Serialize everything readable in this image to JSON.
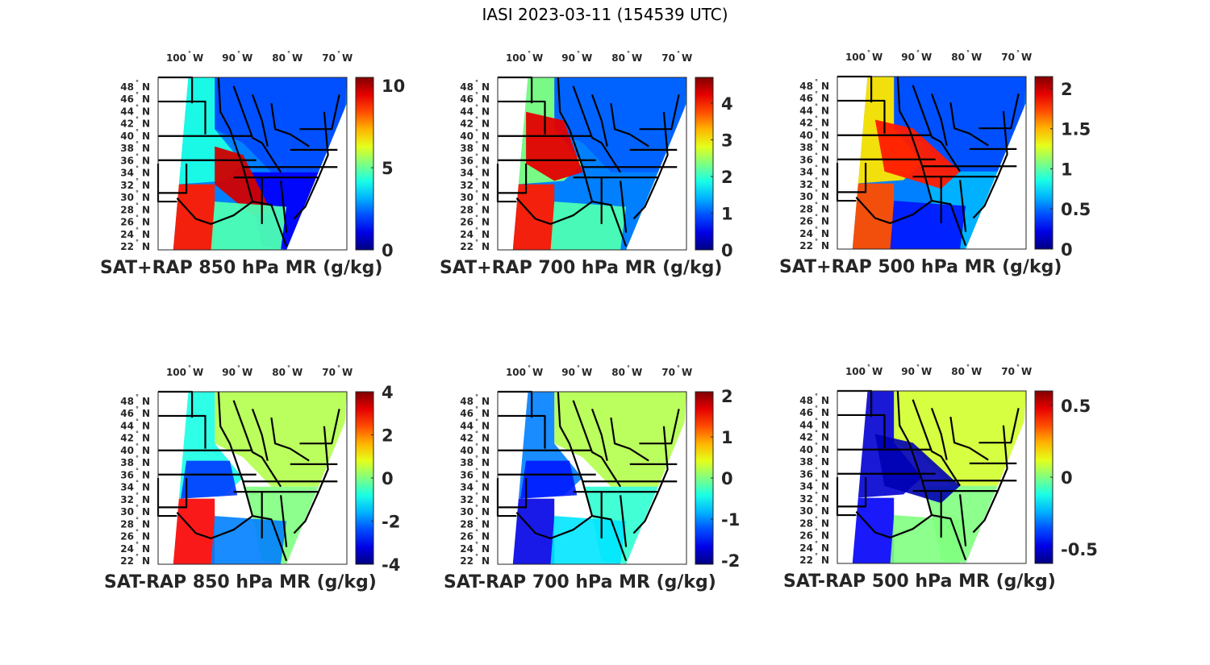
{
  "figure": {
    "title": "IASI 2023-03-11 (154539 UTC)"
  },
  "axes_common": {
    "lon_ticks": [
      {
        "value": "100",
        "hemi": "W"
      },
      {
        "value": "90",
        "hemi": "W"
      },
      {
        "value": "80",
        "hemi": "W"
      },
      {
        "value": "70",
        "hemi": "W"
      }
    ],
    "lat_ticks": [
      {
        "value": "48",
        "hemi": "N"
      },
      {
        "value": "46",
        "hemi": "N"
      },
      {
        "value": "44",
        "hemi": "N"
      },
      {
        "value": "42",
        "hemi": "N"
      },
      {
        "value": "40",
        "hemi": "N"
      },
      {
        "value": "38",
        "hemi": "N"
      },
      {
        "value": "36",
        "hemi": "N"
      },
      {
        "value": "34",
        "hemi": "N"
      },
      {
        "value": "32",
        "hemi": "N"
      },
      {
        "value": "30",
        "hemi": "N"
      },
      {
        "value": "28",
        "hemi": "N"
      },
      {
        "value": "26",
        "hemi": "N"
      },
      {
        "value": "24",
        "hemi": "N"
      },
      {
        "value": "22",
        "hemi": "N"
      }
    ],
    "degree_symbol": "°",
    "colormap": "jet"
  },
  "chart_data": [
    {
      "type": "heatmap",
      "title": "SAT+RAP 850 hPa MR (g/kg)",
      "field": "sum",
      "colorbar": {
        "min": 0,
        "max": 10.5,
        "ticks": [
          0,
          5,
          10
        ],
        "tick_labels": [
          "0",
          "5",
          "10"
        ]
      },
      "regions": [
        {
          "area": "northeast/great-lakes",
          "level": 0.2
        },
        {
          "area": "southeast",
          "level": 0.12
        },
        {
          "area": "plains-west",
          "level": 0.4
        },
        {
          "area": "arklatex-band",
          "level": 0.92
        },
        {
          "area": "texas-coast",
          "level": 0.85
        },
        {
          "area": "gulf",
          "level": 0.45
        }
      ]
    },
    {
      "type": "heatmap",
      "title": "SAT+RAP 700 hPa MR (g/kg)",
      "field": "sum",
      "colorbar": {
        "min": 0,
        "max": 4.7,
        "ticks": [
          0,
          1,
          2,
          3,
          4
        ],
        "tick_labels": [
          "0",
          "1",
          "2",
          "3",
          "4"
        ]
      },
      "regions": [
        {
          "area": "northeast/great-lakes",
          "level": 0.22
        },
        {
          "area": "southeast",
          "level": 0.25
        },
        {
          "area": "plains-west",
          "level": 0.5
        },
        {
          "area": "kansas-missouri",
          "level": 0.9
        },
        {
          "area": "texas-coast",
          "level": 0.85
        },
        {
          "area": "gulf",
          "level": 0.45
        }
      ]
    },
    {
      "type": "heatmap",
      "title": "SAT+RAP 500 hPa MR (g/kg)",
      "field": "sum",
      "colorbar": {
        "min": 0,
        "max": 2.15,
        "ticks": [
          0,
          0.5,
          1,
          1.5,
          2
        ],
        "tick_labels": [
          "0",
          "0.5",
          "1",
          "1.5",
          "2"
        ]
      },
      "regions": [
        {
          "area": "northeast/great-lakes",
          "level": 0.2
        },
        {
          "area": "southeast",
          "level": 0.3
        },
        {
          "area": "plains-west",
          "level": 0.65
        },
        {
          "area": "mid-mississippi",
          "level": 0.85
        },
        {
          "area": "texas-coast",
          "level": 0.8
        },
        {
          "area": "gulf",
          "level": 0.15
        }
      ]
    },
    {
      "type": "heatmap",
      "title": "SAT-RAP 850 hPa MR (g/kg)",
      "field": "difference",
      "colorbar": {
        "min": -4,
        "max": 4,
        "ticks": [
          -4,
          -2,
          0,
          2,
          4
        ],
        "tick_labels": [
          "-4",
          "-2",
          "0",
          "2",
          "4"
        ]
      },
      "regions": [
        {
          "area": "northeast/great-lakes",
          "level": 0.55
        },
        {
          "area": "southeast",
          "level": 0.5
        },
        {
          "area": "plains-west",
          "level": 0.4
        },
        {
          "area": "red-river",
          "level": 0.18
        },
        {
          "area": "texas-coast",
          "level": 0.88
        },
        {
          "area": "gulf",
          "level": 0.25
        }
      ]
    },
    {
      "type": "heatmap",
      "title": "SAT-RAP 700 hPa MR (g/kg)",
      "field": "difference",
      "colorbar": {
        "min": -2.1,
        "max": 2.1,
        "ticks": [
          -2,
          -1,
          0,
          1,
          2
        ],
        "tick_labels": [
          "-2",
          "-1",
          "0",
          "1",
          "2"
        ]
      },
      "regions": [
        {
          "area": "northeast/great-lakes",
          "level": 0.55
        },
        {
          "area": "southeast",
          "level": 0.42
        },
        {
          "area": "plains-west",
          "level": 0.25
        },
        {
          "area": "red-river",
          "level": 0.15
        },
        {
          "area": "texas-coast",
          "level": 0.1
        },
        {
          "area": "gulf",
          "level": 0.35
        }
      ]
    },
    {
      "type": "heatmap",
      "title": "SAT-RAP 500 hPa MR (g/kg)",
      "field": "difference",
      "colorbar": {
        "min": -0.6,
        "max": 0.6,
        "ticks": [
          -0.5,
          0,
          0.5
        ],
        "tick_labels": [
          "-0.5",
          "0",
          "0.5"
        ]
      },
      "regions": [
        {
          "area": "northeast/great-lakes",
          "level": 0.58
        },
        {
          "area": "southeast",
          "level": 0.5
        },
        {
          "area": "plains-west",
          "level": 0.08
        },
        {
          "area": "mid-mississippi",
          "level": 0.05
        },
        {
          "area": "texas-coast",
          "level": 0.12
        },
        {
          "area": "gulf",
          "level": 0.5
        }
      ]
    }
  ]
}
